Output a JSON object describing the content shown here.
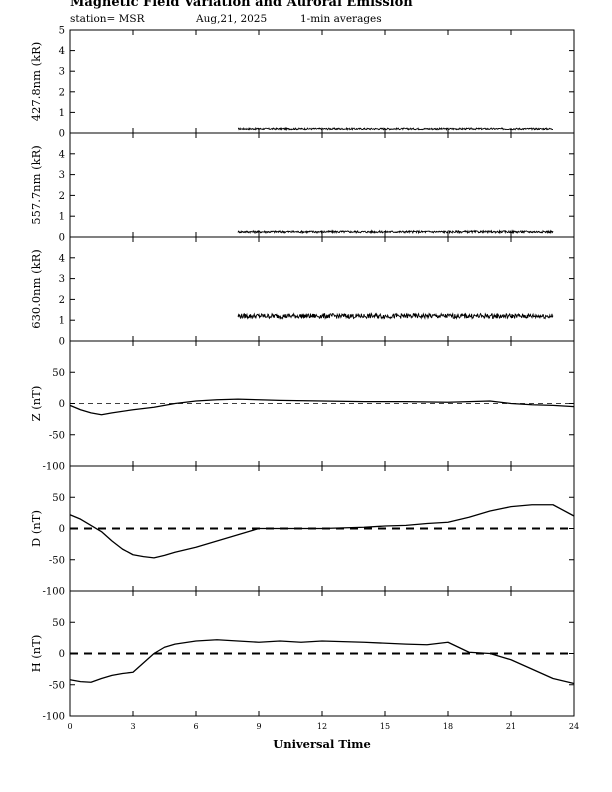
{
  "header": {
    "title": "Magnetic Field Variation and Auroral Emission",
    "station": "station= MSR",
    "date": "Aug,21, 2025",
    "averaging": "1-min averages"
  },
  "chart_data": [
    {
      "type": "line",
      "ylabel": "427.8nm (kR)",
      "ylim": [
        0,
        5
      ],
      "yticks": [
        0,
        1,
        2,
        3,
        4,
        5
      ],
      "xlim": [
        0,
        24
      ],
      "series": [
        {
          "x": [
            8,
            23
          ],
          "y": [
            0.2,
            0.2
          ],
          "noise": 0.04,
          "color": "#000000"
        }
      ]
    },
    {
      "type": "line",
      "ylabel": "557.7nm (kR)",
      "ylim": [
        0,
        5
      ],
      "yticks": [
        0,
        1,
        2,
        3,
        4
      ],
      "xlim": [
        0,
        24
      ],
      "series": [
        {
          "x": [
            8,
            23
          ],
          "y": [
            0.25,
            0.25
          ],
          "noise": 0.05,
          "color": "#000000"
        }
      ]
    },
    {
      "type": "line",
      "ylabel": "630.0nm (kR)",
      "ylim": [
        0,
        5
      ],
      "yticks": [
        0,
        1,
        2,
        3,
        4
      ],
      "xlim": [
        0,
        24
      ],
      "series": [
        {
          "x": [
            8,
            23
          ],
          "y": [
            1.2,
            1.2
          ],
          "noise": 0.12,
          "color": "#000000"
        }
      ]
    },
    {
      "type": "line",
      "ylabel": "Z (nT)",
      "ylim": [
        -100,
        100
      ],
      "yticks": [
        -100,
        -50,
        0,
        50
      ],
      "xlim": [
        0,
        24
      ],
      "zero_line": "thin-dashed",
      "series": [
        {
          "x": [
            0,
            0.5,
            1,
            1.5,
            2,
            3,
            4,
            5,
            6,
            7,
            8,
            9,
            10,
            12,
            14,
            16,
            18,
            20,
            21,
            22,
            23,
            24
          ],
          "y": [
            -3,
            -10,
            -15,
            -18,
            -15,
            -10,
            -6,
            0,
            4,
            6,
            7,
            6,
            5,
            4,
            3,
            3,
            2,
            4,
            0,
            -2,
            -3,
            -5
          ],
          "color": "#000000"
        }
      ]
    },
    {
      "type": "line",
      "ylabel": "D (nT)",
      "ylim": [
        -100,
        100
      ],
      "yticks": [
        -100,
        -50,
        0,
        50
      ],
      "xlim": [
        0,
        24
      ],
      "zero_line": "thick-dashed",
      "series": [
        {
          "x": [
            0,
            0.5,
            1,
            1.5,
            2,
            2.5,
            3,
            3.5,
            4,
            4.5,
            5,
            6,
            7,
            8,
            9,
            10,
            12,
            14,
            15,
            16,
            17,
            18,
            19,
            20,
            21,
            22,
            23,
            24
          ],
          "y": [
            22,
            15,
            5,
            -5,
            -20,
            -33,
            -42,
            -45,
            -47,
            -43,
            -38,
            -30,
            -20,
            -10,
            0,
            0,
            0,
            2,
            4,
            5,
            8,
            10,
            18,
            28,
            35,
            38,
            38,
            20
          ],
          "color": "#000000"
        }
      ]
    },
    {
      "type": "line",
      "ylabel": "H (nT)",
      "ylim": [
        -100,
        100
      ],
      "yticks": [
        -100,
        -50,
        0,
        50
      ],
      "xlim": [
        0,
        24
      ],
      "xticks": [
        0,
        3,
        6,
        9,
        12,
        15,
        18,
        21,
        24
      ],
      "xlabel": "Universal Time",
      "zero_line": "thick-dashed",
      "series": [
        {
          "x": [
            0,
            0.5,
            1,
            1.5,
            2,
            2.5,
            3,
            3.5,
            4,
            4.5,
            5,
            6,
            7,
            8,
            9,
            10,
            11,
            12,
            14,
            16,
            17,
            18,
            18.5,
            19,
            20,
            21,
            22,
            23,
            24
          ],
          "y": [
            -42,
            -45,
            -46,
            -40,
            -35,
            -32,
            -30,
            -15,
            0,
            10,
            15,
            20,
            22,
            20,
            18,
            20,
            18,
            20,
            18,
            15,
            14,
            18,
            10,
            2,
            0,
            -10,
            -25,
            -40,
            -48
          ],
          "color": "#000000"
        }
      ]
    }
  ]
}
